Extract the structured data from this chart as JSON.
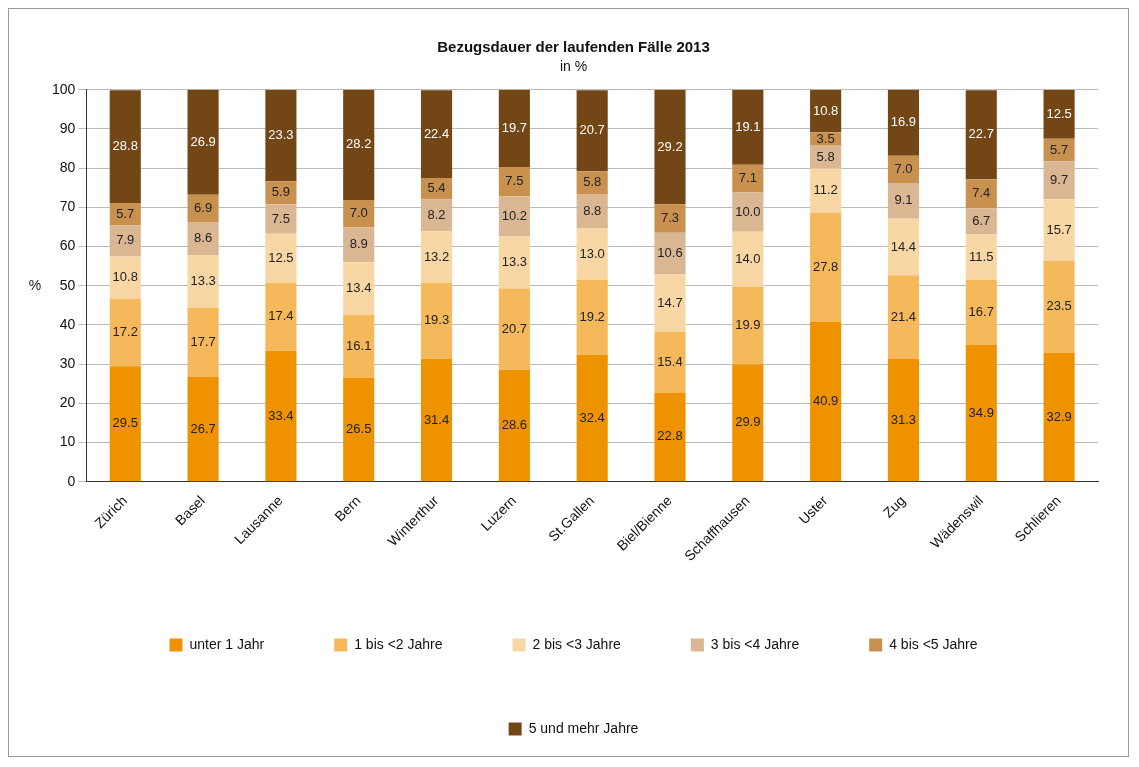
{
  "chart_data": {
    "type": "bar",
    "title": "Bezugsdauer der laufenden Fälle 2013",
    "subtitle": "in %",
    "ylabel": "%",
    "stacked": true,
    "grid": "y",
    "legend": "bottom",
    "ylim": [
      0,
      100
    ],
    "yticks": [
      0,
      10,
      20,
      30,
      40,
      50,
      60,
      70,
      80,
      90,
      100
    ],
    "categories": [
      "Zürich",
      "Basel",
      "Lausanne",
      "Bern",
      "Winterthur",
      "Luzern",
      "St.Gallen",
      "Biel/Bienne",
      "Schaffhausen",
      "Uster",
      "Zug",
      "Wädenswil",
      "Schlieren"
    ],
    "series": [
      {
        "name": "unter 1 Jahr",
        "color": "#ee9200",
        "values": [
          29.5,
          26.7,
          33.4,
          26.5,
          31.4,
          28.6,
          32.4,
          22.8,
          29.9,
          40.9,
          31.3,
          34.9,
          32.9
        ],
        "value_labels": [
          "29.5",
          "26.7",
          "33.4",
          "26.5",
          "31.4",
          "28.6",
          "32.4",
          "22.8",
          "29.9",
          "40.9",
          "31.3",
          "34.9",
          "32.9"
        ]
      },
      {
        "name": "1 bis <2 Jahre",
        "color": "#f5b95c",
        "values": [
          17.2,
          17.7,
          17.4,
          16.1,
          19.3,
          20.7,
          19.2,
          15.4,
          19.9,
          27.8,
          21.4,
          16.7,
          23.5
        ],
        "value_labels": [
          "17.2",
          "17.7",
          "17.4",
          "16.1",
          "19.3",
          "20.7",
          "19.2",
          "15.4",
          "19.9",
          "27.8",
          "21.4",
          "16.7",
          "23.5"
        ]
      },
      {
        "name": "2 bis <3 Jahre",
        "color": "#f9d7a4",
        "values": [
          10.8,
          13.3,
          12.5,
          13.4,
          13.2,
          13.3,
          13.0,
          14.7,
          14.0,
          11.2,
          14.4,
          11.5,
          15.7
        ],
        "value_labels": [
          "10.8",
          "13.3",
          "12.5",
          "13.4",
          "13.2",
          "13.3",
          "13.0",
          "14.7",
          "14.0",
          "11.2",
          "14.4",
          "11.5",
          "15.7"
        ]
      },
      {
        "name": "3 bis <4 Jahre",
        "color": "#dab692",
        "values": [
          7.9,
          8.6,
          7.5,
          8.9,
          8.2,
          10.2,
          8.8,
          10.6,
          10.0,
          5.8,
          9.1,
          6.7,
          9.7
        ],
        "value_labels": [
          "7.9",
          "8.6",
          "7.5",
          "8.9",
          "8.2",
          "10.2",
          "8.8",
          "10.6",
          "10.0",
          "5.8",
          "9.1",
          "6.7",
          "9.7"
        ]
      },
      {
        "name": "4 bis <5 Jahre",
        "color": "#c99150",
        "values": [
          5.7,
          6.9,
          5.9,
          7.0,
          5.4,
          7.5,
          5.8,
          7.3,
          7.1,
          3.5,
          7.0,
          7.4,
          5.7
        ],
        "value_labels": [
          "5.7",
          "6.9",
          "5.9",
          "7.0",
          "5.4",
          "7.5",
          "5.8",
          "7.3",
          "7.1",
          "3.5",
          "7.0",
          "7.4",
          "5.7"
        ]
      },
      {
        "name": "5 und mehr Jahre",
        "color": "#734616",
        "values": [
          28.8,
          26.9,
          23.3,
          28.2,
          22.4,
          19.7,
          20.7,
          29.2,
          19.1,
          10.8,
          16.9,
          22.7,
          12.5
        ],
        "value_labels": [
          "28.8",
          "26.9",
          "23.3",
          "28.2",
          "22.4",
          "19.7",
          "20.7",
          "29.2",
          "19.1",
          "10.8",
          "16.9",
          "22.7",
          "12.5"
        ]
      }
    ]
  }
}
